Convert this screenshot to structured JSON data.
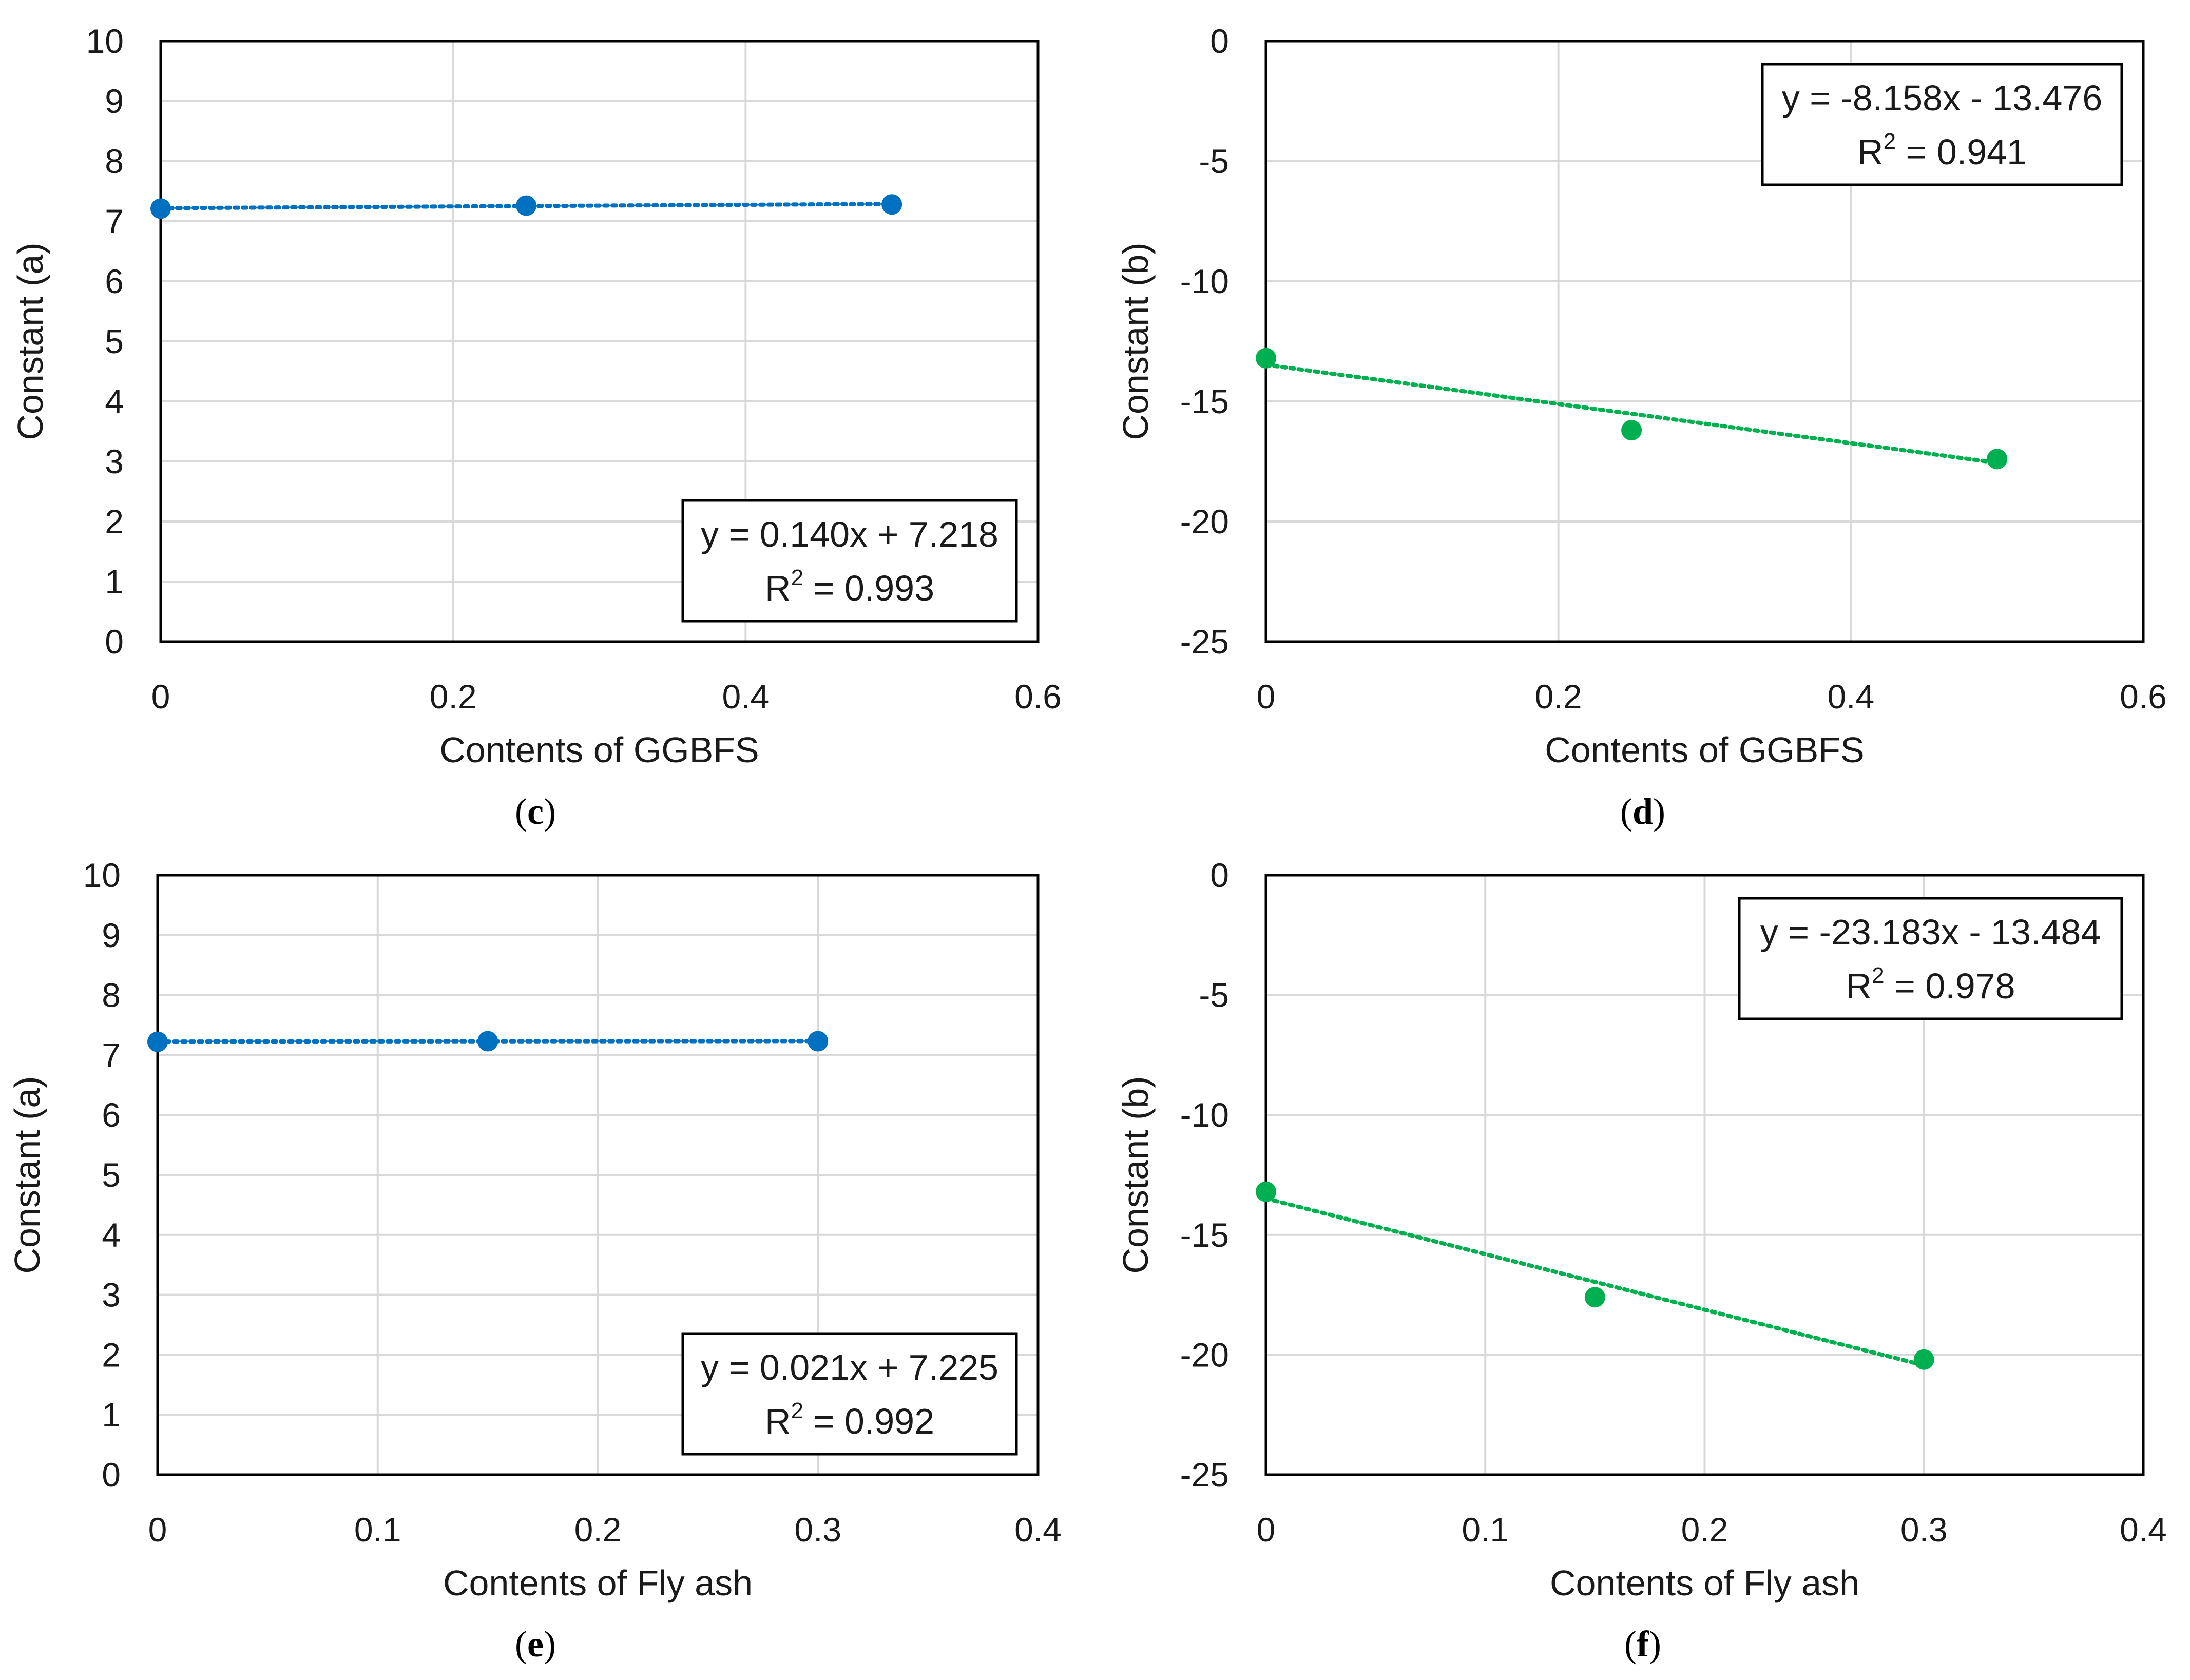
{
  "chart_data": [
    {
      "type": "scatter",
      "panel": "c",
      "caption": "(c)",
      "caption_open": "(",
      "caption_letter": "c",
      "caption_close": ")",
      "xlabel": "Contents of GGBFS",
      "ylabel": "Constant (a)",
      "xlim": [
        0,
        0.6
      ],
      "ylim": [
        0,
        10
      ],
      "xticks": [
        0,
        0.2,
        0.4,
        0.6
      ],
      "xtick_labels": [
        "0",
        "0.2",
        "0.4",
        "0.6"
      ],
      "yticks": [
        0,
        1,
        2,
        3,
        4,
        5,
        6,
        7,
        8,
        9,
        10
      ],
      "ytick_labels": [
        "0",
        "1",
        "2",
        "3",
        "4",
        "5",
        "6",
        "7",
        "8",
        "9",
        "10"
      ],
      "grid": true,
      "series": [
        {
          "name": "Constant (a)",
          "color": "#0070C0",
          "x": [
            0,
            0.25,
            0.5
          ],
          "y": [
            7.21,
            7.26,
            7.28
          ]
        }
      ],
      "trendline": {
        "slope": 0.14,
        "intercept": 7.218,
        "x_range": [
          0,
          0.5
        ],
        "style": "dotted"
      },
      "equation": {
        "text": "y = 0.140x + 7.218",
        "r2_prefix": "R",
        "r2_exp": "2",
        "r2_value": " = 0.993",
        "position": "bottom-right"
      }
    },
    {
      "type": "scatter",
      "panel": "d",
      "caption": "(d)",
      "caption_open": "(",
      "caption_letter": "d",
      "caption_close": ")",
      "xlabel": "Contents of GGBFS",
      "ylabel": "Constant (b)",
      "xlim": [
        0,
        0.6
      ],
      "ylim": [
        -25,
        0
      ],
      "xticks": [
        0,
        0.2,
        0.4,
        0.6
      ],
      "xtick_labels": [
        "0",
        "0.2",
        "0.4",
        "0.6"
      ],
      "yticks": [
        -25,
        -20,
        -15,
        -10,
        -5,
        0
      ],
      "ytick_labels": [
        "-25",
        "-20",
        "-15",
        "-10",
        "-5",
        "0"
      ],
      "grid": true,
      "series": [
        {
          "name": "Constant (b)",
          "color": "#00B050",
          "x": [
            0,
            0.25,
            0.5
          ],
          "y": [
            -13.2,
            -16.2,
            -17.4
          ]
        }
      ],
      "trendline": {
        "slope": -8.158,
        "intercept": -13.476,
        "x_range": [
          0,
          0.5
        ],
        "style": "dotted"
      },
      "equation": {
        "text": "y = -8.158x - 13.476",
        "r2_prefix": "R",
        "r2_exp": "2",
        "r2_value": " = 0.941",
        "position": "top-right"
      }
    },
    {
      "type": "scatter",
      "panel": "e",
      "caption": "(e)",
      "caption_open": "(",
      "caption_letter": "e",
      "caption_close": ")",
      "xlabel": "Contents of Fly ash",
      "ylabel": "Constant (a)",
      "xlim": [
        0,
        0.4
      ],
      "ylim": [
        0,
        10
      ],
      "xticks": [
        0,
        0.1,
        0.2,
        0.3,
        0.4
      ],
      "xtick_labels": [
        "0",
        "0.1",
        "0.2",
        "0.3",
        "0.4"
      ],
      "yticks": [
        0,
        1,
        2,
        3,
        4,
        5,
        6,
        7,
        8,
        9,
        10
      ],
      "ytick_labels": [
        "0",
        "1",
        "2",
        "3",
        "4",
        "5",
        "6",
        "7",
        "8",
        "9",
        "10"
      ],
      "grid": true,
      "series": [
        {
          "name": "Constant (a)",
          "color": "#0070C0",
          "x": [
            0,
            0.15,
            0.3
          ],
          "y": [
            7.22,
            7.23,
            7.23
          ]
        }
      ],
      "trendline": {
        "slope": 0.021,
        "intercept": 7.225,
        "x_range": [
          0,
          0.3
        ],
        "style": "dotted"
      },
      "equation": {
        "text": "y = 0.021x + 7.225",
        "r2_prefix": "R",
        "r2_exp": "2",
        "r2_value": " = 0.992",
        "position": "bottom-right"
      }
    },
    {
      "type": "scatter",
      "panel": "f",
      "caption": "(f)",
      "caption_open": "(",
      "caption_letter": "f",
      "caption_close": ")",
      "xlabel": "Contents of Fly ash",
      "ylabel": "Constant (b)",
      "xlim": [
        0,
        0.4
      ],
      "ylim": [
        -25,
        0
      ],
      "xticks": [
        0,
        0.1,
        0.2,
        0.3,
        0.4
      ],
      "xtick_labels": [
        "0",
        "0.1",
        "0.2",
        "0.3",
        "0.4"
      ],
      "yticks": [
        -25,
        -20,
        -15,
        -10,
        -5,
        0
      ],
      "ytick_labels": [
        "-25",
        "-20",
        "-15",
        "-10",
        "-5",
        "0"
      ],
      "grid": true,
      "series": [
        {
          "name": "Constant (b)",
          "color": "#00B050",
          "x": [
            0,
            0.15,
            0.3
          ],
          "y": [
            -13.2,
            -17.6,
            -20.2
          ]
        }
      ],
      "trendline": {
        "slope": -23.183,
        "intercept": -13.484,
        "x_range": [
          0,
          0.3
        ],
        "style": "dotted"
      },
      "equation": {
        "text": "y = -23.183x - 13.484",
        "r2_prefix": "R",
        "r2_exp": "2",
        "r2_value": " = 0.978",
        "position": "top-right"
      }
    }
  ]
}
